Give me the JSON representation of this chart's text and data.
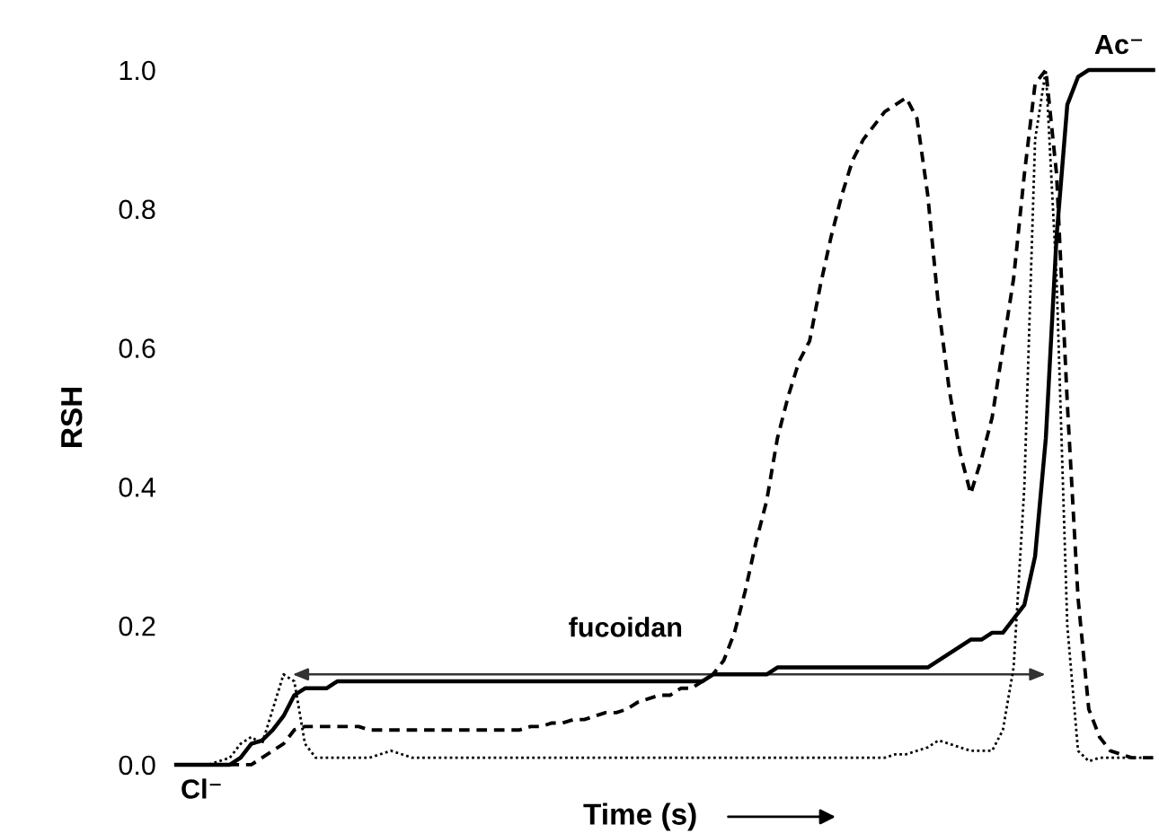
{
  "chart_data": {
    "type": "line",
    "xlabel": "Time (s)",
    "ylabel": "RSH",
    "categories": [
      null,
      null,
      null,
      null,
      null,
      null,
      null,
      null,
      null,
      null,
      null,
      null,
      null,
      null,
      null,
      null,
      null,
      null,
      null,
      null,
      null,
      null,
      null,
      null,
      null,
      null,
      null,
      null,
      null,
      null,
      null,
      null,
      null,
      null,
      null,
      null,
      null,
      null,
      null,
      null,
      null,
      null,
      null,
      null,
      null,
      null,
      null,
      null,
      null,
      null,
      null,
      null,
      null,
      null,
      null,
      null,
      null,
      null,
      null,
      null,
      null,
      null,
      null,
      null,
      null,
      null,
      null,
      null,
      null,
      null,
      null,
      null,
      null,
      null,
      null,
      null,
      null,
      null,
      null,
      null,
      null,
      null,
      null,
      null,
      null,
      null,
      null,
      null,
      null,
      null,
      null,
      null
    ],
    "series": [
      {
        "color": "#000000",
        "line_style": "solid",
        "values": [
          0,
          0,
          0,
          0,
          0,
          0,
          0.01,
          0.03,
          0.035,
          0.05,
          0.07,
          0.1,
          0.11,
          0.11,
          0.11,
          0.12,
          0.12,
          0.12,
          0.12,
          0.12,
          0.12,
          0.12,
          0.12,
          0.12,
          0.12,
          0.12,
          0.12,
          0.12,
          0.12,
          0.12,
          0.12,
          0.12,
          0.12,
          0.12,
          0.12,
          0.12,
          0.12,
          0.12,
          0.12,
          0.12,
          0.12,
          0.12,
          0.12,
          0.12,
          0.12,
          0.12,
          0.12,
          0.12,
          0.12,
          0.12,
          0.13,
          0.13,
          0.13,
          0.13,
          0.13,
          0.13,
          0.14,
          0.14,
          0.14,
          0.14,
          0.14,
          0.14,
          0.14,
          0.14,
          0.14,
          0.14,
          0.14,
          0.14,
          0.14,
          0.14,
          0.14,
          0.15,
          0.16,
          0.17,
          0.18,
          0.18,
          0.19,
          0.19,
          0.21,
          0.23,
          0.3,
          0.47,
          0.76,
          0.95,
          0.99,
          1.0,
          1.0,
          1.0,
          1.0,
          1.0,
          1.0,
          1.0
        ]
      },
      {
        "color": "#000000",
        "line_style": "dashed",
        "values": [
          0,
          0,
          0,
          0,
          0,
          0,
          0,
          0,
          0.01,
          0.02,
          0.03,
          0.05,
          0.055,
          0.055,
          0.055,
          0.055,
          0.055,
          0.055,
          0.05,
          0.05,
          0.05,
          0.05,
          0.05,
          0.05,
          0.05,
          0.05,
          0.05,
          0.05,
          0.05,
          0.05,
          0.05,
          0.05,
          0.05,
          0.055,
          0.055,
          0.06,
          0.06,
          0.065,
          0.065,
          0.07,
          0.075,
          0.075,
          0.08,
          0.09,
          0.095,
          0.1,
          0.1,
          0.11,
          0.11,
          0.12,
          0.13,
          0.15,
          0.19,
          0.25,
          0.32,
          0.38,
          0.47,
          0.53,
          0.58,
          0.61,
          0.69,
          0.76,
          0.82,
          0.87,
          0.9,
          0.92,
          0.94,
          0.95,
          0.96,
          0.93,
          0.82,
          0.66,
          0.54,
          0.45,
          0.39,
          0.44,
          0.5,
          0.6,
          0.7,
          0.85,
          0.98,
          1.0,
          0.85,
          0.52,
          0.24,
          0.08,
          0.04,
          0.02,
          0.015,
          0.01,
          0.01,
          0.01
        ]
      },
      {
        "color": "#000000",
        "line_style": "dotted",
        "values": [
          0,
          0,
          0,
          0,
          0.005,
          0.01,
          0.03,
          0.04,
          0.03,
          0.08,
          0.13,
          0.12,
          0.03,
          0.01,
          0.01,
          0.01,
          0.01,
          0.01,
          0.01,
          0.015,
          0.02,
          0.015,
          0.01,
          0.01,
          0.01,
          0.01,
          0.01,
          0.01,
          0.01,
          0.01,
          0.01,
          0.01,
          0.01,
          0.01,
          0.01,
          0.01,
          0.01,
          0.01,
          0.01,
          0.01,
          0.01,
          0.01,
          0.01,
          0.01,
          0.01,
          0.01,
          0.01,
          0.01,
          0.01,
          0.01,
          0.01,
          0.01,
          0.01,
          0.01,
          0.01,
          0.01,
          0.01,
          0.01,
          0.01,
          0.01,
          0.01,
          0.01,
          0.01,
          0.01,
          0.01,
          0.01,
          0.01,
          0.015,
          0.015,
          0.02,
          0.025,
          0.035,
          0.03,
          0.025,
          0.02,
          0.02,
          0.02,
          0.05,
          0.14,
          0.4,
          0.9,
          1.0,
          0.7,
          0.2,
          0.02,
          0.005,
          0.01,
          0.01,
          0.01,
          0.01,
          0.01,
          0.01
        ]
      }
    ],
    "ylim": [
      0,
      1.0
    ],
    "yticks": [
      {
        "value": 0,
        "label": "0.0"
      },
      {
        "value": 0.2,
        "label": "0.2"
      },
      {
        "value": 0.4,
        "label": "0.4"
      },
      {
        "value": 0.6,
        "label": "0.6"
      },
      {
        "value": 0.8,
        "label": "0.8"
      },
      {
        "value": 1.0,
        "label": "1.0"
      }
    ],
    "tick_labels": "y",
    "grid": false,
    "legend": false,
    "annotations": [
      "fucoidan",
      "Cl⁻",
      "Ac⁻"
    ]
  }
}
